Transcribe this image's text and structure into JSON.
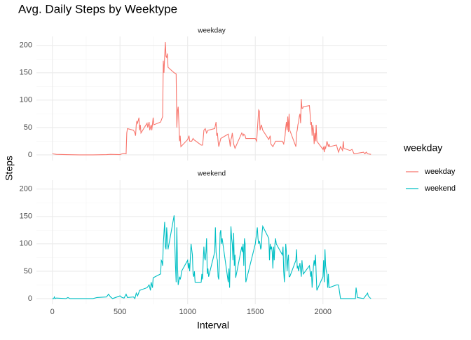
{
  "chart_data": {
    "type": "line",
    "title": "Avg. Daily Steps by Weektype",
    "x_label": "Interval",
    "y_label": "Steps",
    "legend_title": "weekday",
    "grid": true,
    "xlim": [
      -117.75,
      2472.75
    ],
    "xticks": [
      0,
      500,
      1000,
      1500,
      2000
    ],
    "ylim": [
      -10.3,
      216.3
    ],
    "yticks": [
      0,
      50,
      100,
      150,
      200
    ],
    "series": [
      {
        "name": "weekday",
        "color": "#F8766D",
        "x": [
          0,
          30,
          100,
          200,
          300,
          400,
          430,
          500,
          515,
          530,
          545,
          550,
          555,
          600,
          610,
          615,
          620,
          625,
          630,
          640,
          645,
          650,
          655,
          700,
          705,
          715,
          720,
          730,
          735,
          745,
          750,
          800,
          815,
          820,
          825,
          830,
          835,
          840,
          845,
          850,
          855,
          900,
          915,
          920,
          925,
          930,
          935,
          940,
          945,
          950,
          1000,
          1010,
          1015,
          1030,
          1040,
          1045,
          1100,
          1110,
          1115,
          1120,
          1130,
          1140,
          1150,
          1200,
          1210,
          1215,
          1220,
          1225,
          1230,
          1245,
          1300,
          1310,
          1315,
          1320,
          1325,
          1330,
          1340,
          1350,
          1400,
          1410,
          1415,
          1425,
          1430,
          1500,
          1510,
          1515,
          1525,
          1530,
          1535,
          1545,
          1555,
          1600,
          1610,
          1615,
          1630,
          1650,
          1700,
          1710,
          1720,
          1725,
          1730,
          1735,
          1740,
          1745,
          1750,
          1755,
          1800,
          1805,
          1810,
          1815,
          1820,
          1825,
          1830,
          1835,
          1840,
          1845,
          1850,
          1855,
          1900,
          1905,
          1910,
          1915,
          1920,
          1925,
          1930,
          1935,
          1940,
          1945,
          1950,
          1955,
          2000,
          2005,
          2010,
          2015,
          2020,
          2030,
          2040,
          2045,
          2050,
          2100,
          2115,
          2130,
          2145,
          2150,
          2155,
          2200,
          2215,
          2230,
          2300,
          2310,
          2320,
          2330,
          2355
        ],
        "values": [
          2,
          1,
          0.5,
          0,
          0,
          0.5,
          1,
          0.5,
          2,
          3,
          2,
          40,
          48,
          45,
          40,
          35,
          55,
          62,
          58,
          68,
          45,
          55,
          40,
          58,
          50,
          60,
          45,
          55,
          45,
          68,
          55,
          60,
          70,
          172,
          150,
          180,
          206,
          180,
          178,
          185,
          160,
          150,
          148,
          50,
          80,
          88,
          60,
          25,
          35,
          15,
          28,
          35,
          25,
          25,
          30,
          28,
          18,
          18,
          30,
          45,
          48,
          40,
          45,
          48,
          60,
          35,
          40,
          25,
          15,
          30,
          38,
          25,
          15,
          28,
          32,
          40,
          20,
          12,
          40,
          35,
          38,
          35,
          30,
          30,
          25,
          45,
          82,
          80,
          45,
          55,
          45,
          28,
          35,
          20,
          15,
          25,
          25,
          20,
          35,
          50,
          60,
          45,
          70,
          42,
          75,
          45,
          15,
          40,
          45,
          55,
          60,
          70,
          75,
          58,
          102,
          85,
          85,
          88,
          90,
          75,
          55,
          60,
          35,
          55,
          45,
          20,
          40,
          25,
          55,
          25,
          10,
          15,
          5,
          15,
          12,
          25,
          15,
          20,
          15,
          18,
          5,
          15,
          8,
          25,
          12,
          8,
          10,
          2,
          5,
          2,
          5,
          2,
          1
        ]
      },
      {
        "name": "weekend",
        "color": "#00BFC4",
        "x": [
          0,
          10,
          15,
          20,
          30,
          100,
          115,
          130,
          200,
          300,
          330,
          400,
          415,
          430,
          445,
          500,
          515,
          530,
          545,
          555,
          600,
          610,
          620,
          630,
          645,
          700,
          715,
          725,
          730,
          740,
          745,
          800,
          805,
          810,
          815,
          820,
          825,
          830,
          835,
          840,
          845,
          850,
          855,
          900,
          905,
          910,
          915,
          920,
          925,
          930,
          940,
          945,
          950,
          955,
          1000,
          1005,
          1010,
          1015,
          1020,
          1025,
          1030,
          1035,
          1040,
          1045,
          1050,
          1055,
          1100,
          1105,
          1110,
          1115,
          1120,
          1125,
          1130,
          1135,
          1140,
          1145,
          1150,
          1155,
          1200,
          1205,
          1210,
          1215,
          1220,
          1225,
          1230,
          1235,
          1240,
          1245,
          1250,
          1255,
          1300,
          1305,
          1310,
          1315,
          1320,
          1325,
          1330,
          1335,
          1340,
          1345,
          1350,
          1355,
          1400,
          1405,
          1410,
          1415,
          1420,
          1425,
          1430,
          1500,
          1505,
          1510,
          1515,
          1520,
          1525,
          1530,
          1535,
          1540,
          1545,
          1550,
          1555,
          1600,
          1605,
          1610,
          1615,
          1620,
          1625,
          1630,
          1635,
          1640,
          1645,
          1650,
          1655,
          1700,
          1705,
          1710,
          1715,
          1720,
          1725,
          1730,
          1735,
          1740,
          1745,
          1750,
          1755,
          1800,
          1805,
          1810,
          1815,
          1820,
          1830,
          1840,
          1845,
          1850,
          1855,
          1900,
          1910,
          1915,
          1920,
          1930,
          1935,
          1940,
          1945,
          1950,
          1955,
          2000,
          2005,
          2010,
          2015,
          2020,
          2025,
          2030,
          2035,
          2040,
          2045,
          2100,
          2115,
          2130,
          2200,
          2240,
          2245,
          2255,
          2300,
          2330,
          2335,
          2345,
          2355
        ],
        "values": [
          0,
          0,
          3,
          0,
          1,
          0,
          2,
          0,
          0,
          0,
          2,
          3,
          8,
          3,
          0,
          5,
          2,
          1,
          8,
          2,
          3,
          0,
          10,
          5,
          15,
          20,
          25,
          15,
          30,
          20,
          38,
          45,
          70,
          68,
          60,
          100,
          120,
          140,
          95,
          90,
          130,
          110,
          90,
          152,
          100,
          60,
          30,
          130,
          60,
          25,
          40,
          35,
          40,
          50,
          70,
          55,
          65,
          50,
          75,
          100,
          90,
          80,
          45,
          40,
          50,
          30,
          30,
          45,
          35,
          70,
          95,
          75,
          70,
          85,
          110,
          45,
          55,
          40,
          85,
          130,
          85,
          75,
          70,
          40,
          35,
          70,
          120,
          125,
          100,
          110,
          30,
          55,
          20,
          80,
          132,
          110,
          100,
          70,
          120,
          60,
          80,
          38,
          95,
          85,
          100,
          60,
          110,
          100,
          30,
          100,
          110,
          120,
          130,
          110,
          100,
          105,
          100,
          90,
          95,
          120,
          132,
          110,
          70,
          100,
          90,
          95,
          85,
          55,
          95,
          70,
          100,
          110,
          100,
          80,
          95,
          50,
          30,
          55,
          100,
          85,
          50,
          70,
          80,
          40,
          40,
          70,
          90,
          55,
          60,
          50,
          65,
          40,
          70,
          55,
          45,
          60,
          40,
          50,
          20,
          60,
          70,
          60,
          80,
          45,
          15,
          40,
          70,
          30,
          90,
          60,
          50,
          45,
          20,
          45,
          20,
          25,
          25,
          0,
          0,
          0,
          20,
          2,
          0,
          10,
          5,
          2,
          0
        ]
      }
    ]
  }
}
